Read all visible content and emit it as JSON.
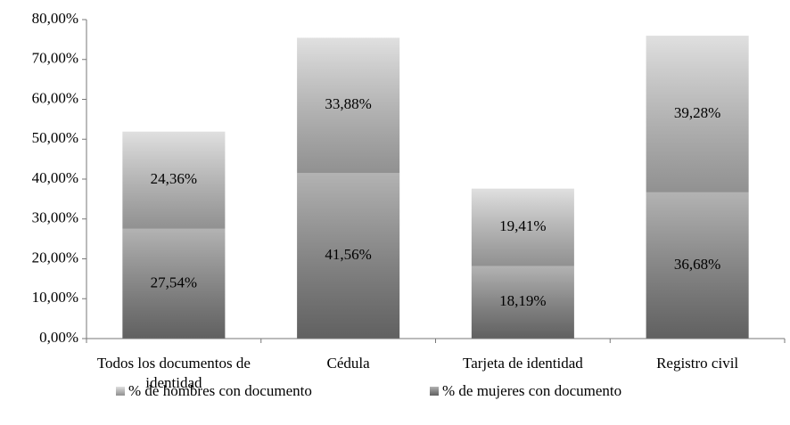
{
  "chart_data": {
    "type": "stacked_bar",
    "categories": [
      "Todos los documentos de identidad",
      "Cédula",
      "Tarjeta de identidad",
      "Registro civil"
    ],
    "series": [
      {
        "name": "% de mujeres con documento",
        "color": "#8a8a8a",
        "values": [
          27.54,
          41.56,
          18.19,
          36.68
        ],
        "value_labels": [
          "27,54%",
          "41,56%",
          "18,19%",
          "36,68%"
        ]
      },
      {
        "name": "% de hombres con documento",
        "color": "#cfcfcf",
        "values": [
          24.36,
          33.88,
          19.41,
          39.28
        ],
        "value_labels": [
          "24,36%",
          "33,88%",
          "19,41%",
          "39,28%"
        ]
      }
    ],
    "legend_order": [
      "% de hombres con documento",
      "% de mujeres con documento"
    ],
    "ylim": [
      0,
      80
    ],
    "yticks": [
      {
        "value": 0,
        "label": "0,00%"
      },
      {
        "value": 10,
        "label": "10,00%"
      },
      {
        "value": 20,
        "label": "20,00%"
      },
      {
        "value": 30,
        "label": "30,00%"
      },
      {
        "value": 40,
        "label": "40,00%"
      },
      {
        "value": 50,
        "label": "50,00%"
      },
      {
        "value": 60,
        "label": "60,00%"
      },
      {
        "value": 70,
        "label": "70,00%"
      },
      {
        "value": 80,
        "label": "80,00%"
      }
    ],
    "legend": "bottom",
    "grid": false
  }
}
